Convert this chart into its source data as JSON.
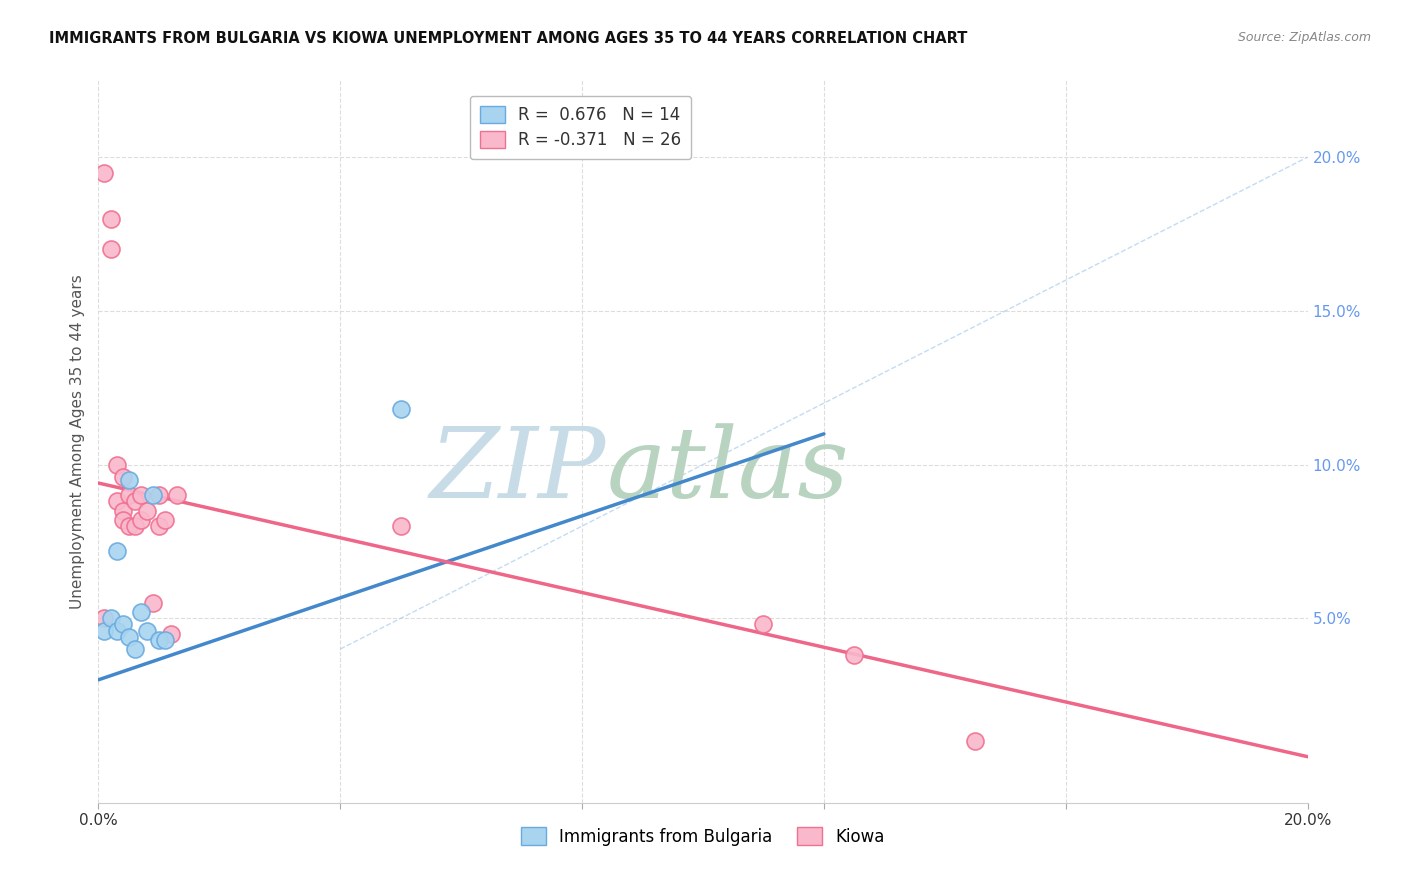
{
  "title": "IMMIGRANTS FROM BULGARIA VS KIOWA UNEMPLOYMENT AMONG AGES 35 TO 44 YEARS CORRELATION CHART",
  "source": "Source: ZipAtlas.com",
  "ylabel": "Unemployment Among Ages 35 to 44 years",
  "xlim": [
    0.0,
    0.2
  ],
  "ylim": [
    -0.01,
    0.225
  ],
  "x_ticks": [
    0.0,
    0.04,
    0.08,
    0.12,
    0.16,
    0.2
  ],
  "x_tick_labels": [
    "0.0%",
    "",
    "",
    "",
    "",
    "20.0%"
  ],
  "y_ticks_right": [
    0.05,
    0.1,
    0.15,
    0.2
  ],
  "y_tick_labels_right": [
    "5.0%",
    "10.0%",
    "15.0%",
    "20.0%"
  ],
  "blue_color": "#a8d4f0",
  "blue_edge": "#6aabdf",
  "pink_color": "#f9b8cc",
  "pink_edge": "#f07090",
  "blue_line_color": "#4488cc",
  "pink_line_color": "#ee6688",
  "blue_scatter_x": [
    0.001,
    0.002,
    0.003,
    0.003,
    0.004,
    0.005,
    0.005,
    0.006,
    0.007,
    0.008,
    0.009,
    0.01,
    0.011,
    0.05
  ],
  "blue_scatter_y": [
    0.046,
    0.05,
    0.046,
    0.072,
    0.048,
    0.044,
    0.095,
    0.04,
    0.052,
    0.046,
    0.09,
    0.043,
    0.043,
    0.118
  ],
  "pink_scatter_x": [
    0.001,
    0.001,
    0.002,
    0.002,
    0.003,
    0.003,
    0.004,
    0.004,
    0.004,
    0.005,
    0.005,
    0.006,
    0.006,
    0.007,
    0.007,
    0.008,
    0.009,
    0.01,
    0.01,
    0.011,
    0.012,
    0.013,
    0.05,
    0.11,
    0.125,
    0.145
  ],
  "pink_scatter_y": [
    0.05,
    0.195,
    0.18,
    0.17,
    0.1,
    0.088,
    0.085,
    0.082,
    0.096,
    0.08,
    0.09,
    0.088,
    0.08,
    0.082,
    0.09,
    0.085,
    0.055,
    0.08,
    0.09,
    0.082,
    0.045,
    0.09,
    0.08,
    0.048,
    0.038,
    0.01
  ],
  "blue_line_x": [
    0.0,
    0.12
  ],
  "blue_line_y": [
    0.03,
    0.11
  ],
  "pink_line_x": [
    0.0,
    0.2
  ],
  "pink_line_y": [
    0.094,
    0.005
  ],
  "diag_line_x": [
    0.04,
    0.2
  ],
  "diag_line_y": [
    0.04,
    0.2
  ],
  "R_blue": "0.676",
  "N_blue": "14",
  "R_pink": "-0.371",
  "N_pink": "26",
  "watermark_zip": "ZIP",
  "watermark_atlas": "atlas",
  "legend_label_blue": "Immigrants from Bulgaria",
  "legend_label_pink": "Kiowa",
  "background_color": "#ffffff",
  "grid_color": "#dddddd",
  "title_color": "#111111",
  "axis_label_color": "#555555",
  "right_axis_color": "#6699ee"
}
